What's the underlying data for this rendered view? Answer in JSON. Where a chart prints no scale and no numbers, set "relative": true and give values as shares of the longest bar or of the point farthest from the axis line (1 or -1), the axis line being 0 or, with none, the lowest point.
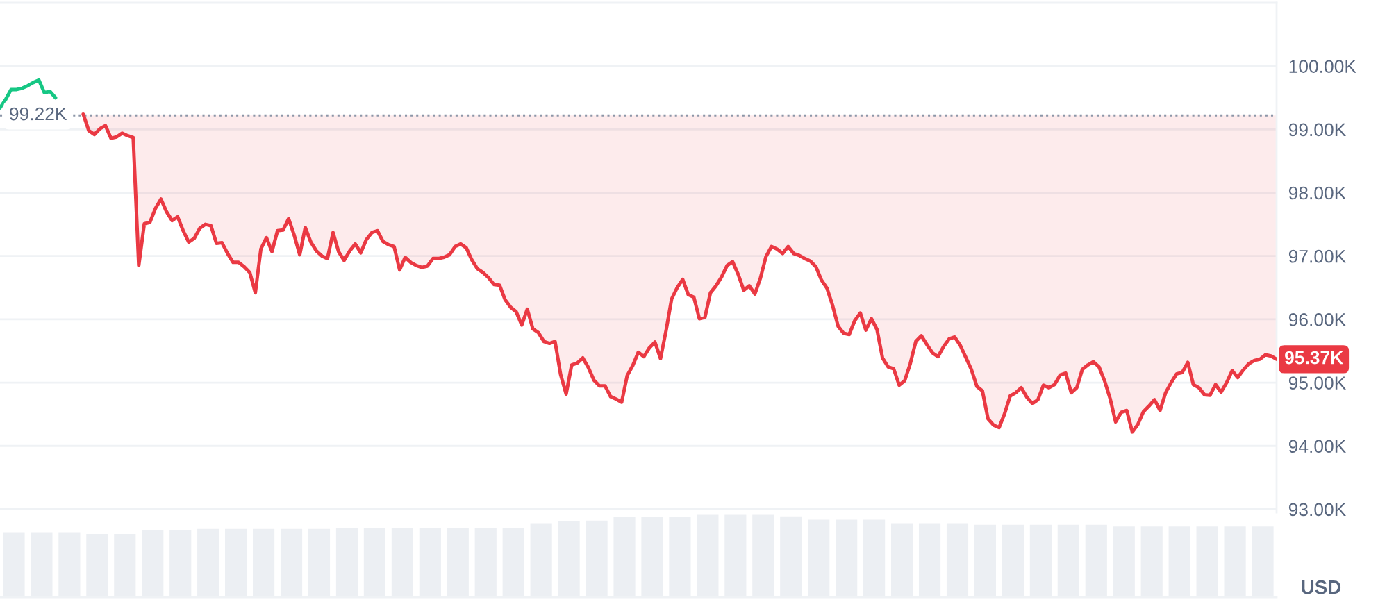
{
  "chart_data": [
    {
      "type": "line",
      "categories": [
        null,
        null,
        null,
        null,
        null,
        null,
        null,
        null,
        null,
        null,
        null,
        null,
        null,
        null,
        null,
        null,
        null,
        null,
        null,
        null,
        null,
        null,
        null,
        null,
        null,
        null,
        null,
        null,
        null,
        null,
        null,
        null,
        null,
        null,
        null,
        null,
        null,
        null,
        null,
        null,
        null,
        null,
        null,
        null,
        null,
        null,
        null,
        null,
        null,
        null,
        null,
        null,
        null,
        null,
        null,
        null,
        null,
        null,
        null,
        null,
        null,
        null,
        null,
        null,
        null,
        null,
        null,
        null,
        null,
        null,
        null,
        null,
        null,
        null,
        null,
        null,
        null,
        null,
        null,
        null,
        null,
        null,
        null,
        null,
        null,
        null,
        null,
        null,
        null,
        null,
        null,
        null,
        null,
        null,
        null,
        null,
        null,
        null,
        null,
        null,
        null,
        null,
        null,
        null,
        null,
        null,
        null,
        null,
        null,
        null,
        null,
        null,
        null,
        null,
        null,
        null,
        null,
        null,
        null,
        null,
        null,
        null,
        null,
        null,
        null,
        null,
        null,
        null,
        null,
        null,
        null,
        null,
        null,
        null,
        null,
        null,
        null,
        null,
        null,
        null,
        null,
        null,
        null,
        null,
        null,
        null,
        null,
        null,
        null,
        null,
        null,
        null,
        null,
        null,
        null,
        null,
        null,
        null,
        null,
        null,
        null,
        null,
        null,
        null,
        null,
        null,
        null,
        null,
        null,
        null,
        null,
        null,
        null,
        null,
        null,
        null,
        null,
        null,
        null,
        null,
        null,
        null,
        null,
        null,
        null,
        null,
        null,
        null,
        null,
        null,
        null,
        null,
        null,
        null,
        null,
        null,
        null,
        null,
        null,
        null,
        null,
        null,
        null,
        null,
        null,
        null,
        null,
        null,
        null,
        null,
        null,
        null,
        null,
        null,
        null,
        null,
        null,
        null,
        null,
        null,
        null,
        null,
        null,
        null,
        null,
        null,
        null,
        null,
        null,
        null,
        null
      ],
      "series": [
        {
          "color": "#16c784",
          "values": [
            99.34,
            99.47,
            99.63,
            99.63,
            99.65,
            99.69,
            99.74,
            99.78,
            99.58,
            99.6,
            99.5,
            null,
            null,
            null,
            null,
            null,
            null,
            null,
            null,
            null,
            null,
            null,
            null,
            null,
            null,
            null,
            null,
            null,
            null,
            null,
            null,
            null,
            null,
            null,
            null,
            null,
            null,
            null,
            null,
            null,
            null,
            null,
            null,
            null,
            null,
            null,
            null,
            null,
            null,
            null,
            null,
            null,
            null,
            null,
            null,
            null,
            null,
            null,
            null,
            null,
            null,
            null,
            null,
            null,
            null,
            null,
            null,
            null,
            null,
            null,
            null,
            null,
            null,
            null,
            null,
            null,
            null,
            null,
            null,
            null,
            null,
            null,
            null,
            null,
            null,
            null,
            null,
            null,
            null,
            null,
            null,
            null,
            null,
            null,
            null,
            null,
            null,
            null,
            null,
            null,
            null,
            null,
            null,
            null,
            null,
            null,
            null,
            null,
            null,
            null,
            null,
            null,
            null,
            null,
            null,
            null,
            null,
            null,
            null,
            null,
            null,
            null,
            null,
            null,
            null,
            null,
            null,
            null,
            null,
            null,
            null,
            null,
            null,
            null,
            null,
            null,
            null,
            null,
            null,
            null,
            null,
            null,
            null,
            null,
            null,
            null,
            null,
            null,
            null,
            null,
            null,
            null,
            null,
            null,
            null,
            null,
            null,
            null,
            null,
            null,
            null,
            null,
            null,
            null,
            null,
            null,
            null,
            null,
            null,
            null,
            null,
            null,
            null,
            null,
            null,
            null,
            null,
            null,
            null,
            null,
            null,
            null,
            null,
            null,
            null,
            null,
            null,
            null,
            null,
            null,
            null,
            null,
            null,
            null,
            null,
            null,
            null,
            null,
            null,
            null,
            null,
            null,
            null,
            null,
            null,
            null,
            null,
            null,
            null,
            null,
            null,
            null,
            null,
            null,
            null,
            null,
            null,
            null,
            null,
            null,
            null,
            null,
            null,
            null,
            null,
            null,
            null,
            null,
            null,
            null,
            null
          ]
        },
        {
          "color": "#ea3943",
          "values": [
            null,
            null,
            null,
            null,
            null,
            null,
            null,
            null,
            null,
            null,
            null,
            null,
            null,
            null,
            null,
            99.24,
            98.98,
            98.92,
            99.01,
            99.06,
            98.86,
            98.88,
            98.94,
            98.9,
            98.87,
            96.85,
            97.51,
            97.53,
            97.75,
            97.9,
            97.7,
            97.56,
            97.62,
            97.4,
            97.22,
            97.28,
            97.44,
            97.5,
            97.48,
            97.2,
            97.21,
            97.04,
            96.9,
            96.9,
            96.83,
            96.74,
            96.42,
            97.11,
            97.29,
            97.07,
            97.4,
            97.41,
            97.59,
            97.33,
            97.02,
            97.45,
            97.22,
            97.08,
            97.0,
            96.96,
            97.37,
            97.07,
            96.93,
            97.08,
            97.19,
            97.05,
            97.26,
            97.37,
            97.4,
            97.23,
            97.18,
            97.15,
            96.78,
            96.98,
            96.9,
            96.85,
            96.82,
            96.84,
            96.96,
            96.96,
            96.98,
            97.02,
            97.15,
            97.19,
            97.13,
            96.94,
            96.8,
            96.74,
            96.66,
            96.55,
            96.54,
            96.31,
            96.19,
            96.12,
            95.91,
            96.16,
            95.85,
            95.79,
            95.65,
            95.62,
            95.65,
            95.13,
            94.82,
            95.28,
            95.31,
            95.39,
            95.24,
            95.04,
            94.95,
            94.95,
            94.78,
            94.74,
            94.69,
            95.11,
            95.27,
            95.48,
            95.41,
            95.55,
            95.64,
            95.38,
            95.82,
            96.32,
            96.5,
            96.63,
            96.39,
            96.35,
            96.01,
            96.03,
            96.42,
            96.53,
            96.67,
            96.85,
            96.91,
            96.71,
            96.46,
            96.53,
            96.4,
            96.65,
            96.99,
            97.15,
            97.11,
            97.04,
            97.15,
            97.04,
            97.01,
            96.96,
            96.92,
            96.83,
            96.62,
            96.49,
            96.22,
            95.89,
            95.78,
            95.76,
            95.98,
            96.1,
            95.83,
            96.01,
            95.84,
            95.39,
            95.25,
            95.22,
            94.96,
            95.03,
            95.3,
            95.65,
            95.74,
            95.6,
            95.47,
            95.41,
            95.57,
            95.69,
            95.72,
            95.59,
            95.4,
            95.21,
            94.94,
            94.87,
            94.43,
            94.33,
            94.29,
            94.51,
            94.79,
            94.84,
            94.92,
            94.77,
            94.67,
            94.73,
            94.96,
            94.92,
            94.97,
            95.12,
            95.15,
            94.84,
            94.92,
            95.21,
            95.28,
            95.33,
            95.25,
            95.03,
            94.75,
            94.38,
            94.53,
            94.56,
            94.22,
            94.34,
            94.54,
            94.63,
            94.73,
            94.56,
            94.84,
            95.0,
            95.14,
            95.16,
            95.32,
            94.97,
            94.92,
            94.81,
            94.8,
            94.97,
            94.85,
            95.0,
            95.19,
            95.08,
            95.2,
            95.3,
            95.35,
            95.37,
            95.44,
            95.42,
            95.37
          ]
        }
      ],
      "ylim": [
        92.95,
        101.0
      ],
      "yticks": [
        {
          "value": 93,
          "label": "93.00K"
        },
        {
          "value": 94,
          "label": "94.00K"
        },
        {
          "value": 95,
          "label": "95.00K"
        },
        {
          "value": 96,
          "label": "96.00K"
        },
        {
          "value": 97,
          "label": "97.00K"
        },
        {
          "value": 98,
          "label": "98.00K"
        },
        {
          "value": 99,
          "label": "99.00K"
        },
        {
          "value": 100,
          "label": "100.00K"
        }
      ],
      "ylabel": "USD",
      "grid": "y",
      "tick_labels": "y",
      "ref_lines": [
        {
          "axis": "y",
          "value": 99.22,
          "label": "99.22K",
          "line_style": "dotted",
          "color": "#8c96a8"
        }
      ],
      "annotations": [
        "95.37K"
      ]
    },
    {
      "type": "bar",
      "relative": true,
      "categories": [
        null,
        null,
        null,
        null,
        null,
        null,
        null,
        null,
        null,
        null,
        null,
        null,
        null,
        null,
        null,
        null,
        null,
        null,
        null,
        null,
        null,
        null,
        null,
        null,
        null,
        null,
        null,
        null,
        null,
        null,
        null,
        null,
        null,
        null,
        null,
        null,
        null,
        null,
        null,
        null,
        null,
        null,
        null,
        null,
        null,
        null
      ],
      "values": [
        0.79,
        0.79,
        0.79,
        0.77,
        0.77,
        0.82,
        0.82,
        0.83,
        0.83,
        0.83,
        0.83,
        0.83,
        0.84,
        0.84,
        0.84,
        0.84,
        0.84,
        0.84,
        0.84,
        0.9,
        0.92,
        0.93,
        0.97,
        0.97,
        0.97,
        1.0,
        1.0,
        1.0,
        0.98,
        0.94,
        0.94,
        0.94,
        0.9,
        0.9,
        0.9,
        0.88,
        0.88,
        0.88,
        0.88,
        0.88,
        0.86,
        0.86,
        0.86,
        0.86,
        0.86,
        0.86
      ],
      "color": "#eceff3"
    }
  ]
}
